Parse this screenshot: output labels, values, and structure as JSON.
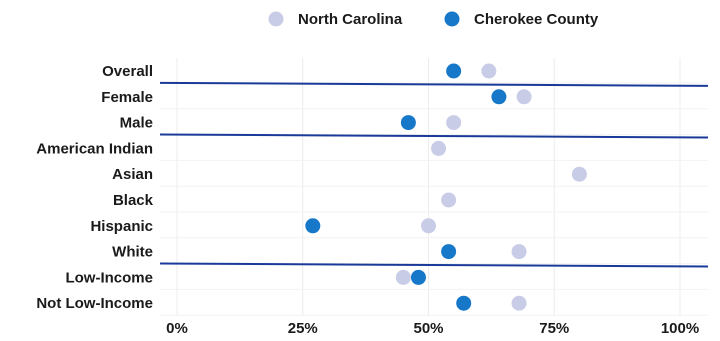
{
  "chart_data": {
    "type": "scatter",
    "title": "",
    "xlabel": "",
    "ylabel": "",
    "xlim": [
      0,
      100
    ],
    "x_ticks": [
      0,
      25,
      50,
      75,
      100
    ],
    "x_tick_labels": [
      "0%",
      "25%",
      "50%",
      "75%",
      "100%"
    ],
    "grid": true,
    "legend_position": "top",
    "categories": [
      "Overall",
      "Female",
      "Male",
      "American Indian",
      "Asian",
      "Black",
      "Hispanic",
      "White",
      "Low-Income",
      "Not Low-Income"
    ],
    "group_separators_after": [
      "Overall",
      "Male",
      "White"
    ],
    "series": [
      {
        "name": "North Carolina",
        "color": "#c9cce6",
        "values": [
          62,
          69,
          55,
          52,
          80,
          54,
          50,
          68,
          45,
          68
        ]
      },
      {
        "name": "Cherokee County",
        "color": "#1778c9",
        "values": [
          55,
          64,
          46,
          null,
          null,
          null,
          27,
          54,
          48,
          57
        ]
      }
    ],
    "separator_color": "#1a3a9a"
  }
}
